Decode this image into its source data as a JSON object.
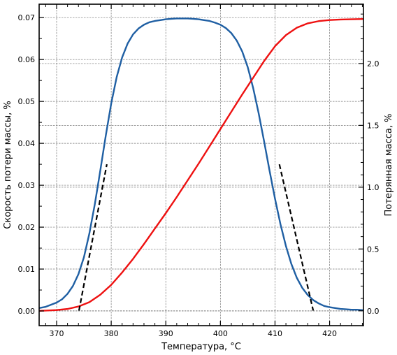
{
  "chart_data": {
    "type": "line",
    "title": "",
    "xlabel": "Температура, °C",
    "ylabel_left": "Скорость потери массы, %",
    "ylabel_right": "Потерянная масса, %",
    "xlim": [
      366.8,
      426.2
    ],
    "ylim_left": [
      -0.0035,
      0.0732
    ],
    "ylim_right": [
      -0.12,
      2.48
    ],
    "grid": true,
    "x_ticks": [
      370,
      380,
      390,
      400,
      410,
      420
    ],
    "x_tick_labels": [
      "370",
      "380",
      "390",
      "400",
      "410",
      "420"
    ],
    "y_left_ticks": [
      0.0,
      0.01,
      0.02,
      0.03,
      0.04,
      0.05,
      0.06,
      0.07
    ],
    "y_left_tick_labels": [
      "0.00",
      "0.01",
      "0.02",
      "0.03",
      "0.04",
      "0.05",
      "0.06",
      "0.07"
    ],
    "y_right_ticks": [
      0.0,
      0.5,
      1.0,
      1.5,
      2.0
    ],
    "y_right_tick_labels": [
      "0.0",
      "0.5",
      "1.0",
      "1.5",
      "2.0"
    ],
    "series": [
      {
        "name": "",
        "axis": "left",
        "color": "#1f5fa3",
        "style": "solid",
        "x": [
          366.8,
          368,
          370,
          371,
          372,
          373,
          374,
          375,
          376,
          377,
          378,
          379,
          380,
          381,
          382,
          383,
          384,
          385,
          386,
          387,
          388,
          389,
          390,
          391,
          392,
          393,
          394,
          395,
          396,
          397,
          398,
          399,
          400,
          401,
          402,
          403,
          404,
          405,
          406,
          407,
          408,
          409,
          410,
          411,
          412,
          413,
          414,
          415,
          416,
          417,
          418,
          419,
          420,
          421,
          422,
          423,
          424,
          425,
          426.2
        ],
        "y": [
          0.0007,
          0.001,
          0.002,
          0.0028,
          0.0041,
          0.006,
          0.0088,
          0.0128,
          0.0185,
          0.0255,
          0.0335,
          0.0418,
          0.0495,
          0.0558,
          0.0605,
          0.0638,
          0.066,
          0.0674,
          0.0683,
          0.0689,
          0.0692,
          0.0694,
          0.0696,
          0.0697,
          0.0698,
          0.0698,
          0.0698,
          0.0697,
          0.0696,
          0.0694,
          0.0692,
          0.0688,
          0.0683,
          0.0675,
          0.0663,
          0.0645,
          0.0619,
          0.0582,
          0.0532,
          0.0472,
          0.0405,
          0.0335,
          0.0268,
          0.0207,
          0.0155,
          0.0112,
          0.0079,
          0.0055,
          0.0038,
          0.0026,
          0.0018,
          0.0012,
          0.0009,
          0.0007,
          0.0005,
          0.0004,
          0.0003,
          0.0003,
          0.0002
        ]
      },
      {
        "name": "",
        "axis": "right",
        "color": "#ee1111",
        "style": "solid",
        "x": [
          366.8,
          368,
          370,
          372,
          374,
          376,
          378,
          380,
          382,
          384,
          386,
          388,
          390,
          392,
          394,
          396,
          398,
          400,
          402,
          404,
          406,
          408,
          410,
          412,
          414,
          416,
          418,
          420,
          422,
          424,
          426.2
        ],
        "y": [
          0.0,
          0.002,
          0.006,
          0.015,
          0.035,
          0.07,
          0.13,
          0.21,
          0.31,
          0.42,
          0.54,
          0.665,
          0.79,
          0.92,
          1.055,
          1.19,
          1.33,
          1.47,
          1.61,
          1.75,
          1.885,
          2.02,
          2.14,
          2.23,
          2.29,
          2.325,
          2.343,
          2.352,
          2.356,
          2.358,
          2.36
        ]
      },
      {
        "name": "",
        "axis": "left",
        "color": "#000000",
        "style": "dashed",
        "x": [
          374.1,
          379.2
        ],
        "y": [
          0.0001,
          0.035
        ]
      },
      {
        "name": "",
        "axis": "left",
        "color": "#000000",
        "style": "dashed",
        "x": [
          410.8,
          417.0
        ],
        "y": [
          0.035,
          0.0001
        ]
      }
    ]
  }
}
